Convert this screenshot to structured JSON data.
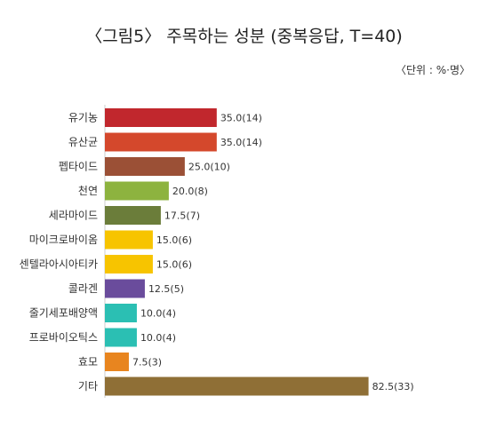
{
  "chart_data": {
    "type": "bar",
    "orientation": "horizontal",
    "title": "〈그림5〉 주목하는 성분 (중복응답, T=40)",
    "unit_note": "〈단위 : %·명〉",
    "categories": [
      "유기농",
      "유산균",
      "펩타이드",
      "천연",
      "세라마이드",
      "마이크로바이옴",
      "센텔라아시아티카",
      "콜라겐",
      "줄기세포배양액",
      "프로바이오틱스",
      "효모",
      "기타"
    ],
    "values": [
      35.0,
      35.0,
      25.0,
      20.0,
      17.5,
      15.0,
      15.0,
      12.5,
      10.0,
      10.0,
      7.5,
      82.5
    ],
    "counts": [
      14,
      14,
      10,
      8,
      7,
      6,
      6,
      5,
      4,
      4,
      3,
      33
    ],
    "data_labels": [
      "35.0(14)",
      "35.0(14)",
      "25.0(10)",
      "20.0(8)",
      "17.5(7)",
      "15.0(6)",
      "15.0(6)",
      "12.5(5)",
      "10.0(4)",
      "10.0(4)",
      "7.5(3)",
      "82.5(33)"
    ],
    "colors": [
      "#c1272d",
      "#d4482c",
      "#9b5036",
      "#8db33f",
      "#6b7d3a",
      "#f7c400",
      "#f7c400",
      "#6a4c9c",
      "#2bbfb3",
      "#2bbfb3",
      "#e8851f",
      "#8f6f36"
    ],
    "xlim": [
      0,
      100
    ],
    "grid": false,
    "legend": "none"
  }
}
